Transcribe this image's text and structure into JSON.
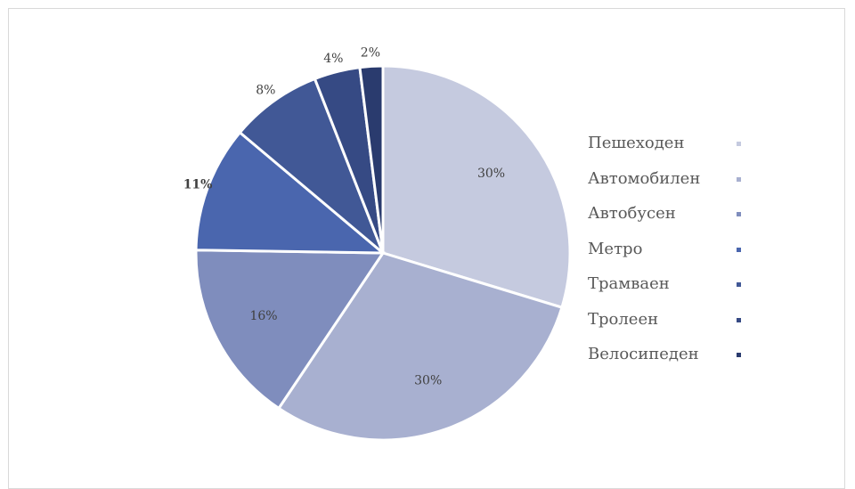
{
  "chart_data": {
    "type": "pie",
    "title": "",
    "legend_position": "right",
    "slices": [
      {
        "name": "Пешеходен",
        "value": 30,
        "label": "30%",
        "color": "#c5cadf"
      },
      {
        "name": "Автомобилен",
        "value": 30,
        "label": "30%",
        "color": "#a8b0d0"
      },
      {
        "name": "Автобусен",
        "value": 16,
        "label": "16%",
        "color": "#7f8dbd"
      },
      {
        "name": "Метро",
        "value": 11,
        "label": "11%",
        "color": "#4a66ae"
      },
      {
        "name": "Трамваен",
        "value": 8,
        "label": "8%",
        "color": "#415896"
      },
      {
        "name": "Тролеен",
        "value": 4,
        "label": "4%",
        "color": "#364a84"
      },
      {
        "name": "Велосипеден",
        "value": 2,
        "label": "2%",
        "color": "#2a3b6e"
      }
    ]
  }
}
